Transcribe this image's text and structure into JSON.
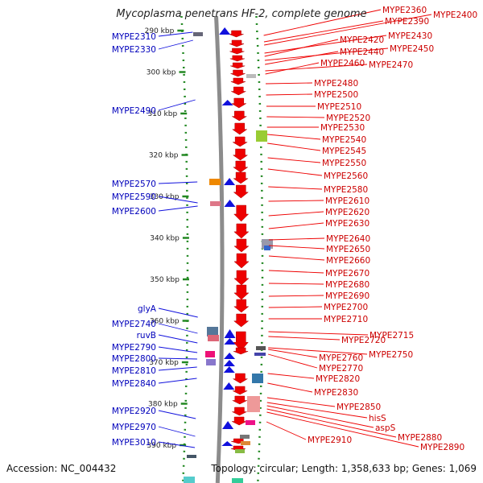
{
  "title": "Mycoplasma penetrans HF-2, complete genome",
  "footer": {
    "accession": "Accession: NC_004432",
    "summary": "Topology: circular; Length: 1,358,633 bp; Genes: 1,069"
  },
  "colors": {
    "backbone": "#8c8c8c",
    "plus_strand": "#ee0000",
    "minus_strand": "#1010dd",
    "plus_label": "#cc0000",
    "minus_label": "#0000bb",
    "tick": "#228822",
    "misc_feature": "#777777"
  },
  "scale_ticks": [
    "290 kbp",
    "300 kbp",
    "310 kbp",
    "320 kbp",
    "330 kbp",
    "340 kbp",
    "350 kbp",
    "360 kbp",
    "370 kbp",
    "380 kbp",
    "390 kbp"
  ],
  "left_labels": [
    "MYPE2310",
    "MYPE2330",
    "MYPE2490",
    "MYPE2570",
    "MYPE2590",
    "MYPE2600",
    "glyA",
    "MYPE2740",
    "ruvB",
    "MYPE2790",
    "MYPE2800",
    "MYPE2810",
    "MYPE2840",
    "MYPE2920",
    "MYPE2970",
    "MYPE3010"
  ],
  "right_labels": [
    "MYPE2360",
    "MYPE2400",
    "MYPE2390",
    "MYPE2430",
    "MYPE2420",
    "MYPE2450",
    "MYPE2440",
    "MYPE2470",
    "MYPE2460",
    "MYPE2480",
    "MYPE2500",
    "MYPE2510",
    "MYPE2520",
    "MYPE2530",
    "MYPE2540",
    "MYPE2545",
    "MYPE2550",
    "MYPE2560",
    "MYPE2580",
    "MYPE2610",
    "MYPE2620",
    "MYPE2630",
    "MYPE2640",
    "MYPE2650",
    "MYPE2660",
    "MYPE2670",
    "MYPE2680",
    "MYPE2690",
    "MYPE2700",
    "MYPE2710",
    "MYPE2715",
    "MYPE2720",
    "MYPE2750",
    "MYPE2760",
    "MYPE2770",
    "MYPE2820",
    "MYPE2830",
    "MYPE2850",
    "hisS",
    "aspS",
    "MYPE2880",
    "MYPE2890",
    "MYPE2910"
  ]
}
